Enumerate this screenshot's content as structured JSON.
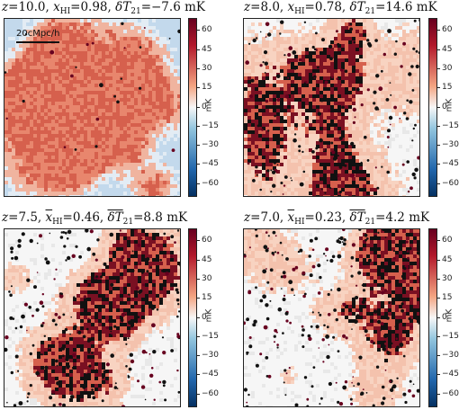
{
  "chart_data": [
    {
      "type": "heatmap",
      "title_parts": {
        "z": "10.0",
        "xHI": "0.98",
        "dT": "−7.6"
      },
      "neutral_fraction": 0.98,
      "mean_dT21_mK": -7.6,
      "colorbar": {
        "label": "mK",
        "min": -70,
        "max": 70,
        "ticks": [
          "60",
          "45",
          "30",
          "15",
          "0",
          "−15",
          "−30",
          "−45",
          "−60"
        ]
      },
      "annotation": "20cMpc/h"
    },
    {
      "type": "heatmap",
      "title_parts": {
        "z": "8.0",
        "xHI": "0.78",
        "dT": "14.6"
      },
      "neutral_fraction": 0.78,
      "mean_dT21_mK": 14.6,
      "colorbar": {
        "label": "mK",
        "min": -70,
        "max": 70,
        "ticks": [
          "60",
          "45",
          "30",
          "15",
          "0",
          "−15",
          "−30",
          "−45",
          "−60"
        ]
      }
    },
    {
      "type": "heatmap",
      "title_parts": {
        "z": "7.5",
        "xHI": "0.46",
        "dT": "8.8"
      },
      "neutral_fraction": 0.46,
      "mean_dT21_mK": 8.8,
      "colorbar": {
        "label": "mK",
        "min": -70,
        "max": 70,
        "ticks": [
          "60",
          "45",
          "30",
          "15",
          "0",
          "−15",
          "−30",
          "−45",
          "−60"
        ]
      }
    },
    {
      "type": "heatmap",
      "title_parts": {
        "z": "7.0",
        "xHI": "0.23",
        "dT": "4.2"
      },
      "neutral_fraction": 0.23,
      "mean_dT21_mK": 4.2,
      "colorbar": {
        "label": "mK",
        "min": -70,
        "max": 70,
        "ticks": [
          "60",
          "45",
          "30",
          "15",
          "0",
          "−15",
          "−30",
          "−45",
          "−60"
        ]
      }
    }
  ],
  "colors": {
    "cold": "#2166ac",
    "neutral": "#f7f7f7",
    "hot": "#b2182b",
    "max": "#67001f",
    "ionized": "#111111"
  }
}
